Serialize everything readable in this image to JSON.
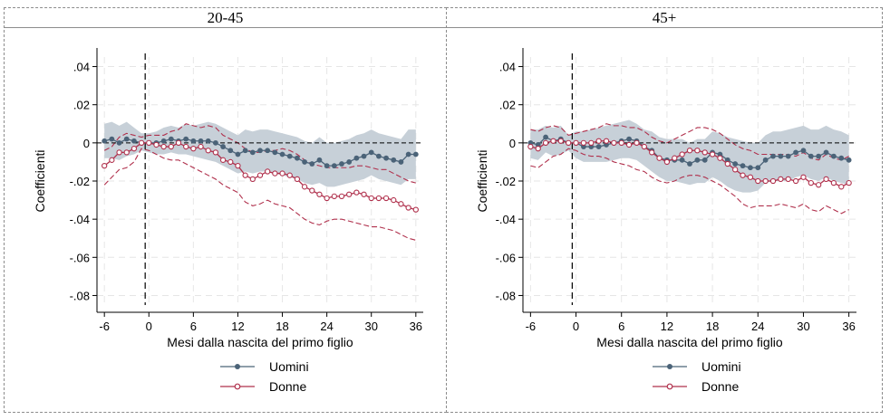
{
  "chart_data": [
    {
      "type": "line",
      "title": "20-45",
      "xlabel": "Mesi dalla nascita del primo figlio",
      "ylabel": "Coefficienti",
      "xlim": [
        -7,
        37
      ],
      "ylim": [
        -0.085,
        0.045
      ],
      "xticks": [
        -6,
        0,
        6,
        12,
        18,
        24,
        30,
        36
      ],
      "xtick_labels": [
        "-6",
        "0",
        "6",
        "12",
        "18",
        "24",
        "30",
        "36"
      ],
      "yticks": [
        0.04,
        0.02,
        0,
        -0.02,
        -0.04,
        -0.06,
        -0.08
      ],
      "ytick_labels": [
        ".04",
        ".02",
        "0",
        "-.02",
        "-.04",
        "-.06",
        "-.08"
      ],
      "grid": true,
      "reference_lines": {
        "x": -0.5,
        "y": 0
      },
      "x": [
        -6,
        -5,
        -4,
        -3,
        -2,
        -1,
        0,
        1,
        2,
        3,
        4,
        5,
        6,
        7,
        8,
        9,
        10,
        11,
        12,
        13,
        14,
        15,
        16,
        17,
        18,
        19,
        20,
        21,
        22,
        23,
        24,
        25,
        26,
        27,
        28,
        29,
        30,
        31,
        32,
        33,
        34,
        35,
        36
      ],
      "series": [
        {
          "name": "Uomini",
          "color": "#4b6378",
          "values": [
            0.001,
            0.002,
            0.0,
            0.002,
            0.001,
            0.0,
            0.0,
            0.0,
            0.001,
            0.002,
            0.001,
            0.002,
            0.001,
            0.001,
            0.001,
            0.0,
            -0.002,
            -0.004,
            -0.006,
            -0.004,
            -0.005,
            -0.004,
            -0.004,
            -0.005,
            -0.006,
            -0.007,
            -0.008,
            -0.01,
            -0.011,
            -0.009,
            -0.012,
            -0.012,
            -0.011,
            -0.01,
            -0.008,
            -0.007,
            -0.005,
            -0.007,
            -0.008,
            -0.009,
            -0.01,
            -0.006,
            -0.006
          ],
          "ci_lower": [
            -0.008,
            -0.008,
            -0.009,
            -0.007,
            -0.006,
            -0.004,
            -0.005,
            -0.006,
            -0.006,
            -0.005,
            -0.006,
            -0.006,
            -0.007,
            -0.008,
            -0.009,
            -0.01,
            -0.012,
            -0.014,
            -0.016,
            -0.015,
            -0.016,
            -0.015,
            -0.015,
            -0.016,
            -0.017,
            -0.018,
            -0.019,
            -0.021,
            -0.022,
            -0.021,
            -0.023,
            -0.023,
            -0.022,
            -0.021,
            -0.02,
            -0.019,
            -0.017,
            -0.019,
            -0.02,
            -0.021,
            -0.022,
            -0.019,
            -0.019
          ],
          "ci_upper": [
            0.01,
            0.011,
            0.009,
            0.011,
            0.008,
            0.005,
            0.005,
            0.006,
            0.008,
            0.009,
            0.008,
            0.01,
            0.009,
            0.01,
            0.011,
            0.01,
            0.008,
            0.006,
            0.004,
            0.007,
            0.006,
            0.007,
            0.007,
            0.006,
            0.005,
            0.004,
            0.003,
            0.001,
            0.0,
            0.003,
            0.0,
            0.0,
            0.001,
            0.002,
            0.004,
            0.005,
            0.007,
            0.005,
            0.004,
            0.003,
            0.002,
            0.007,
            0.007
          ]
        },
        {
          "name": "Donne",
          "color": "#b0304c",
          "values": [
            -0.012,
            -0.009,
            -0.005,
            -0.005,
            -0.003,
            0.0,
            0.0,
            -0.001,
            -0.002,
            -0.002,
            0.0,
            -0.002,
            -0.003,
            -0.002,
            -0.004,
            -0.005,
            -0.009,
            -0.01,
            -0.012,
            -0.017,
            -0.019,
            -0.017,
            -0.015,
            -0.016,
            -0.016,
            -0.017,
            -0.019,
            -0.023,
            -0.025,
            -0.027,
            -0.029,
            -0.028,
            -0.028,
            -0.027,
            -0.026,
            -0.027,
            -0.029,
            -0.029,
            -0.029,
            -0.03,
            -0.032,
            -0.034,
            -0.035
          ],
          "ci_lower": [
            -0.022,
            -0.018,
            -0.014,
            -0.013,
            -0.01,
            -0.003,
            -0.004,
            -0.006,
            -0.008,
            -0.009,
            -0.009,
            -0.011,
            -0.013,
            -0.015,
            -0.017,
            -0.019,
            -0.022,
            -0.024,
            -0.026,
            -0.031,
            -0.033,
            -0.032,
            -0.03,
            -0.032,
            -0.033,
            -0.034,
            -0.037,
            -0.04,
            -0.042,
            -0.043,
            -0.041,
            -0.04,
            -0.04,
            -0.041,
            -0.042,
            -0.043,
            -0.044,
            -0.044,
            -0.045,
            -0.046,
            -0.048,
            -0.05,
            -0.051
          ],
          "ci_upper": [
            -0.004,
            -0.002,
            0.003,
            0.005,
            0.004,
            0.003,
            0.004,
            0.004,
            0.004,
            0.006,
            0.007,
            0.01,
            0.009,
            0.008,
            0.009,
            0.008,
            0.004,
            0.002,
            0.0,
            -0.003,
            -0.005,
            -0.005,
            -0.004,
            -0.004,
            -0.003,
            -0.004,
            -0.006,
            -0.009,
            -0.011,
            -0.012,
            -0.013,
            -0.013,
            -0.013,
            -0.013,
            -0.012,
            -0.012,
            -0.013,
            -0.014,
            -0.014,
            -0.016,
            -0.018,
            -0.02,
            -0.021
          ]
        }
      ]
    },
    {
      "type": "line",
      "title": "45+",
      "xlabel": "Mesi dalla nascita del primo figlio",
      "ylabel": "Coefficienti",
      "xlim": [
        -7,
        37
      ],
      "ylim": [
        -0.085,
        0.045
      ],
      "xticks": [
        -6,
        0,
        6,
        12,
        18,
        24,
        30,
        36
      ],
      "xtick_labels": [
        "-6",
        "0",
        "6",
        "12",
        "18",
        "24",
        "30",
        "36"
      ],
      "yticks": [
        0.04,
        0.02,
        0,
        -0.02,
        -0.04,
        -0.06,
        -0.08
      ],
      "ytick_labels": [
        ".04",
        ".02",
        "0",
        "-.02",
        "-.04",
        "-.06",
        "-.08"
      ],
      "grid": true,
      "reference_lines": {
        "x": -0.5,
        "y": 0
      },
      "x": [
        -6,
        -5,
        -4,
        -3,
        -2,
        -1,
        0,
        1,
        2,
        3,
        4,
        5,
        6,
        7,
        8,
        9,
        10,
        11,
        12,
        13,
        14,
        15,
        16,
        17,
        18,
        19,
        20,
        21,
        22,
        23,
        24,
        25,
        26,
        27,
        28,
        29,
        30,
        31,
        32,
        33,
        34,
        35,
        36
      ],
      "series": [
        {
          "name": "Uomini",
          "color": "#4b6378",
          "values": [
            0.0,
            -0.001,
            0.003,
            0.001,
            0.002,
            0.0,
            0.0,
            -0.002,
            -0.002,
            -0.002,
            -0.001,
            0.0,
            0.001,
            0.002,
            0.001,
            -0.002,
            -0.004,
            -0.008,
            -0.009,
            -0.009,
            -0.009,
            -0.011,
            -0.009,
            -0.009,
            -0.005,
            -0.006,
            -0.009,
            -0.011,
            -0.012,
            -0.013,
            -0.013,
            -0.009,
            -0.007,
            -0.007,
            -0.007,
            -0.005,
            -0.004,
            -0.007,
            -0.007,
            -0.005,
            -0.007,
            -0.008,
            -0.009
          ],
          "ci_lower": [
            -0.008,
            -0.009,
            -0.005,
            -0.007,
            -0.006,
            -0.004,
            -0.008,
            -0.01,
            -0.01,
            -0.01,
            -0.01,
            -0.009,
            -0.008,
            -0.008,
            -0.009,
            -0.012,
            -0.015,
            -0.018,
            -0.02,
            -0.02,
            -0.021,
            -0.022,
            -0.021,
            -0.021,
            -0.018,
            -0.02,
            -0.023,
            -0.025,
            -0.026,
            -0.026,
            -0.025,
            -0.021,
            -0.02,
            -0.02,
            -0.02,
            -0.018,
            -0.017,
            -0.019,
            -0.02,
            -0.018,
            -0.02,
            -0.021,
            -0.022
          ],
          "ci_upper": [
            0.007,
            0.007,
            0.009,
            0.008,
            0.009,
            0.004,
            0.006,
            0.006,
            0.007,
            0.008,
            0.009,
            0.01,
            0.011,
            0.012,
            0.01,
            0.007,
            0.006,
            0.003,
            0.002,
            0.002,
            0.002,
            0.0,
            0.002,
            0.002,
            0.006,
            0.005,
            0.003,
            0.002,
            0.001,
            0.0,
            0.0,
            0.004,
            0.006,
            0.006,
            0.007,
            0.008,
            0.009,
            0.007,
            0.007,
            0.009,
            0.007,
            0.006,
            0.004
          ]
        },
        {
          "name": "Donne",
          "color": "#b0304c",
          "values": [
            -0.002,
            -0.003,
            0.0,
            0.001,
            0.001,
            0.0,
            0.0,
            0.0,
            0.0,
            0.001,
            0.001,
            0.0,
            0.0,
            -0.001,
            0.0,
            -0.002,
            -0.005,
            -0.008,
            -0.01,
            -0.008,
            -0.006,
            -0.004,
            -0.004,
            -0.005,
            -0.006,
            -0.008,
            -0.011,
            -0.014,
            -0.017,
            -0.018,
            -0.02,
            -0.02,
            -0.02,
            -0.019,
            -0.019,
            -0.02,
            -0.018,
            -0.021,
            -0.022,
            -0.019,
            -0.021,
            -0.023,
            -0.021
          ],
          "ci_lower": [
            -0.012,
            -0.013,
            -0.01,
            -0.007,
            -0.006,
            -0.003,
            -0.004,
            -0.006,
            -0.007,
            -0.007,
            -0.008,
            -0.01,
            -0.011,
            -0.012,
            -0.014,
            -0.015,
            -0.018,
            -0.02,
            -0.021,
            -0.02,
            -0.018,
            -0.017,
            -0.017,
            -0.018,
            -0.02,
            -0.022,
            -0.025,
            -0.028,
            -0.032,
            -0.034,
            -0.033,
            -0.033,
            -0.033,
            -0.032,
            -0.033,
            -0.034,
            -0.032,
            -0.035,
            -0.036,
            -0.033,
            -0.035,
            -0.037,
            -0.035
          ],
          "ci_upper": [
            0.007,
            0.006,
            0.008,
            0.009,
            0.008,
            0.004,
            0.005,
            0.006,
            0.007,
            0.008,
            0.01,
            0.009,
            0.009,
            0.008,
            0.008,
            0.006,
            0.003,
            0.001,
            0.0,
            0.002,
            0.004,
            0.006,
            0.008,
            0.008,
            0.007,
            0.005,
            0.002,
            -0.001,
            -0.003,
            -0.004,
            -0.006,
            -0.006,
            -0.006,
            -0.006,
            -0.006,
            -0.007,
            -0.005,
            -0.008,
            -0.009,
            -0.006,
            -0.008,
            -0.009,
            -0.007
          ]
        }
      ]
    }
  ],
  "colors": {
    "ci_band": "#c7d0d8",
    "grid": "#e6e6e6",
    "uomini": "#4b6378",
    "donne": "#b0304c"
  },
  "legend": {
    "uomini": "Uomini",
    "donne": "Donne"
  }
}
